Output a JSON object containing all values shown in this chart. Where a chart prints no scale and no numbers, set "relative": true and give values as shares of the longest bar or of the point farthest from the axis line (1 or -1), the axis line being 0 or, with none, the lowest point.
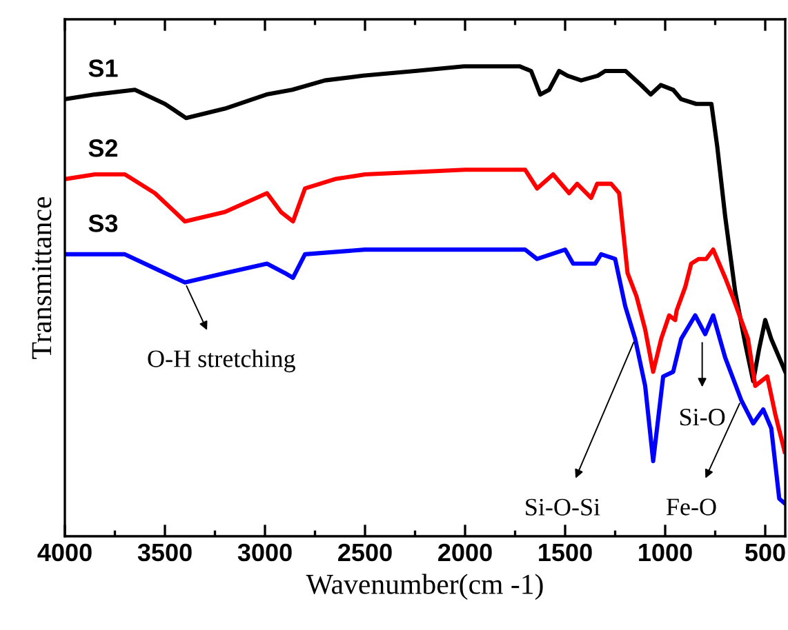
{
  "chart_data": {
    "type": "line",
    "relative": true,
    "xlabel": "Wavenumber(cm -1)",
    "ylabel": "Transmittance",
    "xlim": [
      4000,
      400
    ],
    "xticks": [
      4000,
      3500,
      3000,
      2500,
      2000,
      1500,
      1000,
      500
    ],
    "tick_labels": "x",
    "grid": false,
    "legend": "top left",
    "marker": "none",
    "line_style": "solid",
    "series": [
      {
        "name": "S1",
        "color": "#000000",
        "x": [
          4000,
          3850,
          3650,
          3500,
          3394,
          3200,
          2992,
          2864,
          2700,
          2510,
          2250,
          2006,
          1850,
          1728,
          1670,
          1624,
          1580,
          1530,
          1488,
          1420,
          1337,
          1300,
          1198,
          1120,
          1072,
          1022,
          960,
          920,
          845,
          769,
          740,
          700,
          650,
          600,
          560,
          530,
          500,
          470,
          430,
          400
        ],
        "values": [
          0.93,
          0.94,
          0.95,
          0.92,
          0.89,
          0.91,
          0.94,
          0.95,
          0.97,
          0.98,
          0.99,
          1.0,
          1.0,
          1.0,
          0.99,
          0.94,
          0.95,
          0.99,
          0.98,
          0.97,
          0.98,
          0.99,
          0.99,
          0.96,
          0.94,
          0.96,
          0.95,
          0.93,
          0.92,
          0.92,
          0.83,
          0.68,
          0.52,
          0.41,
          0.33,
          0.4,
          0.46,
          0.42,
          0.38,
          0.35
        ]
      },
      {
        "name": "S2",
        "color": "#ff0000",
        "x": [
          4000,
          3850,
          3700,
          3550,
          3400,
          3200,
          2990,
          2920,
          2860,
          2800,
          2650,
          2500,
          2000,
          1700,
          1640,
          1560,
          1480,
          1440,
          1370,
          1340,
          1270,
          1230,
          1188,
          1143,
          1100,
          1060,
          1020,
          980,
          950,
          943,
          900,
          870,
          833,
          795,
          760,
          700,
          663,
          586,
          550,
          520,
          490,
          450,
          403
        ],
        "values": [
          0.76,
          0.77,
          0.77,
          0.73,
          0.67,
          0.69,
          0.73,
          0.69,
          0.67,
          0.74,
          0.76,
          0.77,
          0.78,
          0.78,
          0.74,
          0.77,
          0.73,
          0.75,
          0.72,
          0.75,
          0.75,
          0.73,
          0.56,
          0.51,
          0.44,
          0.35,
          0.42,
          0.47,
          0.46,
          0.48,
          0.53,
          0.58,
          0.59,
          0.59,
          0.61,
          0.55,
          0.51,
          0.42,
          0.32,
          0.33,
          0.34,
          0.26,
          0.18
        ]
      },
      {
        "name": "S3",
        "color": "#0000ff",
        "x": [
          4000,
          3850,
          3700,
          3550,
          3400,
          3200,
          2990,
          2900,
          2860,
          2800,
          2500,
          2000,
          1700,
          1640,
          1500,
          1460,
          1350,
          1320,
          1250,
          1200,
          1150,
          1100,
          1060,
          1010,
          960,
          920,
          850,
          800,
          760,
          700,
          620,
          560,
          510,
          470,
          430,
          403
        ],
        "values": [
          0.6,
          0.6,
          0.6,
          0.57,
          0.54,
          0.56,
          0.58,
          0.56,
          0.55,
          0.6,
          0.61,
          0.61,
          0.61,
          0.59,
          0.61,
          0.58,
          0.58,
          0.6,
          0.59,
          0.49,
          0.42,
          0.32,
          0.16,
          0.34,
          0.35,
          0.42,
          0.47,
          0.43,
          0.47,
          0.38,
          0.29,
          0.24,
          0.27,
          0.23,
          0.08,
          0.07
        ]
      }
    ],
    "annotations": [
      {
        "text": "O-H stretching",
        "x": 3400,
        "y": 0.54
      },
      {
        "text": "Si-O",
        "x": 815,
        "y": 0.42
      },
      {
        "text": "Si-O-Si",
        "x": 1150,
        "y": 0.42
      },
      {
        "text": "Fe-O",
        "x": 620,
        "y": 0.29
      }
    ]
  }
}
